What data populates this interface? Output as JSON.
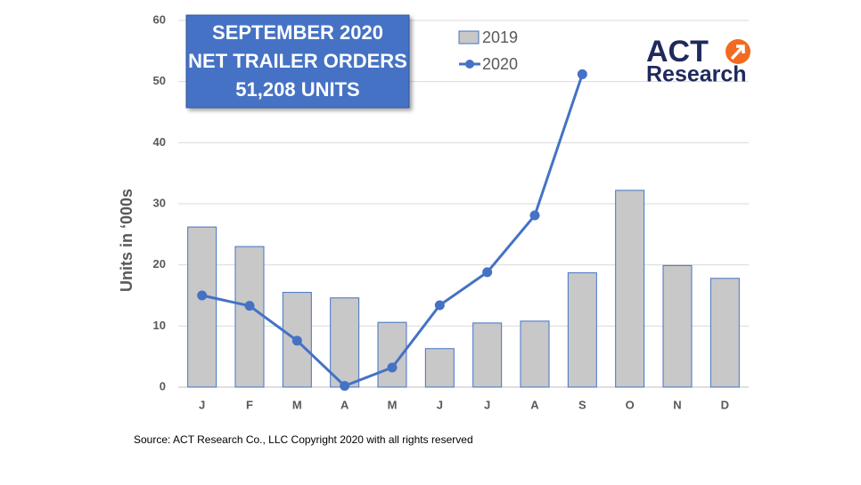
{
  "chart_data": {
    "type": "bar-line",
    "title": [
      "SEPTEMBER 2020",
      "NET TRAILER ORDERS",
      "51,208 UNITS"
    ],
    "y_label": "Units in ‘000s",
    "source": "Source: ACT Research Co., LLC  Copyright 2020 with all rights reserved",
    "logo": [
      "ACT",
      "Research"
    ],
    "categories": [
      "J",
      "F",
      "M",
      "A",
      "M",
      "J",
      "J",
      "A",
      "S",
      "O",
      "N",
      "D"
    ],
    "series": [
      {
        "name": "2019",
        "type": "bar",
        "color": "#c8c8c8",
        "values": [
          26.2,
          23.0,
          15.5,
          14.6,
          10.6,
          6.3,
          10.5,
          10.8,
          18.7,
          32.2,
          19.9,
          17.8
        ]
      },
      {
        "name": "2020",
        "type": "line",
        "color": "#4472c4",
        "values": [
          15.0,
          13.3,
          7.6,
          0.2,
          3.2,
          13.4,
          18.8,
          28.1,
          51.2,
          null,
          null,
          null
        ]
      }
    ],
    "ylim": [
      0,
      60
    ],
    "yticks": [
      0,
      10,
      20,
      30,
      40,
      50,
      60
    ],
    "grid": true
  }
}
